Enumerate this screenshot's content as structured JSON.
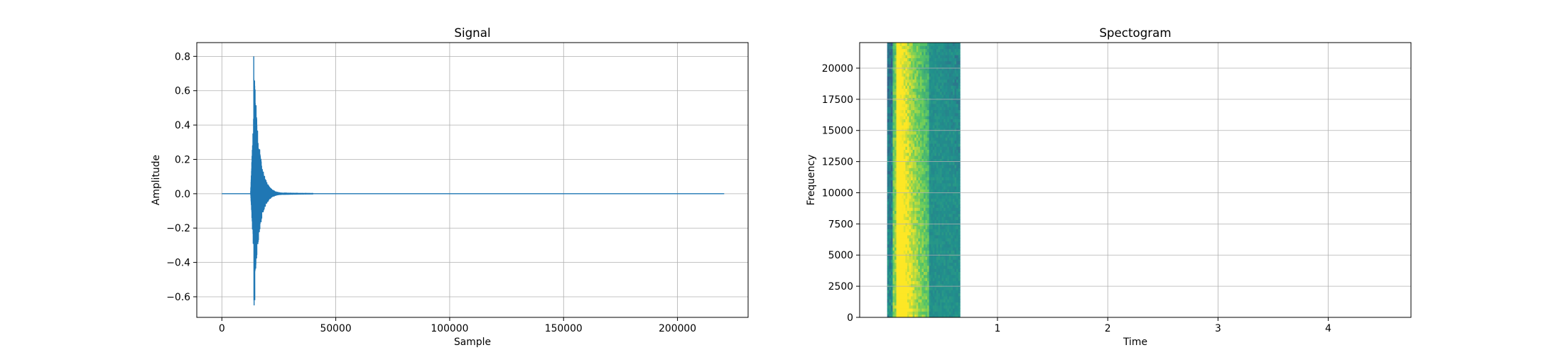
{
  "chart_data": [
    {
      "type": "line",
      "title": "Signal",
      "xlabel": "Sample",
      "ylabel": "Amplitude",
      "xlim": [
        -11000,
        231000
      ],
      "ylim": [
        -0.72,
        0.88
      ],
      "xticks": [
        0,
        50000,
        100000,
        150000,
        200000
      ],
      "xtick_labels": [
        "0",
        "50000",
        "100000",
        "150000",
        "200000"
      ],
      "yticks": [
        -0.6,
        -0.4,
        -0.2,
        0.0,
        0.2,
        0.4,
        0.6,
        0.8
      ],
      "ytick_labels": [
        "−0.6",
        "−0.4",
        "−0.2",
        "0.0",
        "0.2",
        "0.4",
        "0.6",
        "0.8"
      ],
      "grid": true,
      "series": [
        {
          "color": "#1f77b4",
          "sample_count": 220500,
          "description_points": {
            "onset_sample": 12600,
            "peak_positive": 0.8,
            "peak_negative": -0.65,
            "peak_sample": 14000,
            "decay_end_sample": 40000,
            "end_sample": 220500
          }
        }
      ]
    },
    {
      "type": "heatmap",
      "title": "Spectogram",
      "xlabel": "Time",
      "ylabel": "Frequency",
      "xlim": [
        -0.25,
        4.75
      ],
      "ylim": [
        0,
        22050
      ],
      "xticks": [
        1,
        2,
        3,
        4
      ],
      "xtick_labels": [
        "1",
        "2",
        "3",
        "4"
      ],
      "yticks": [
        0,
        2500,
        5000,
        7500,
        10000,
        12500,
        15000,
        17500,
        20000
      ],
      "ytick_labels": [
        "0",
        "2500",
        "5000",
        "7500",
        "10000",
        "12500",
        "15000",
        "17500",
        "20000"
      ],
      "grid": true,
      "image_extent_time": [
        0.0,
        0.66
      ],
      "colormap": "viridis"
    }
  ]
}
